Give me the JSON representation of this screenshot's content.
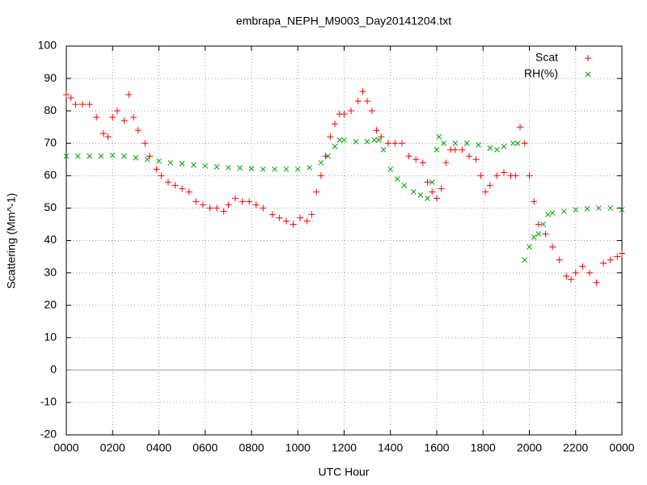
{
  "chart_data": {
    "type": "scatter",
    "title": "embrapa_NEPH_M9003_Day20141204.txt",
    "xlabel": "UTC Hour",
    "ylabel": "Scattering (Mm^-1)",
    "xlim": [
      0,
      24
    ],
    "xticks": [
      {
        "value": 0,
        "label": "0000"
      },
      {
        "value": 2,
        "label": "0200"
      },
      {
        "value": 4,
        "label": "0400"
      },
      {
        "value": 6,
        "label": "0600"
      },
      {
        "value": 8,
        "label": "0800"
      },
      {
        "value": 10,
        "label": "1000"
      },
      {
        "value": 12,
        "label": "1200"
      },
      {
        "value": 14,
        "label": "1400"
      },
      {
        "value": 16,
        "label": "1600"
      },
      {
        "value": 18,
        "label": "1800"
      },
      {
        "value": 20,
        "label": "2000"
      },
      {
        "value": 22,
        "label": "2200"
      },
      {
        "value": 24,
        "label": "0000"
      }
    ],
    "ylim": [
      -20,
      100
    ],
    "yticks": [
      -20,
      -10,
      0,
      10,
      20,
      30,
      40,
      50,
      60,
      70,
      80,
      90,
      100
    ],
    "grid": true,
    "zero_line": true,
    "legend": "top-right",
    "series": [
      {
        "name": "Scat",
        "color": "#ff0000",
        "marker": "plus",
        "x": [
          0.0,
          0.2,
          0.4,
          0.7,
          1.0,
          1.3,
          1.6,
          1.8,
          2.0,
          2.2,
          2.5,
          2.7,
          2.9,
          3.1,
          3.4,
          3.6,
          3.9,
          4.1,
          4.4,
          4.7,
          5.0,
          5.3,
          5.6,
          5.9,
          6.2,
          6.5,
          6.8,
          7.0,
          7.3,
          7.6,
          7.9,
          8.2,
          8.5,
          8.9,
          9.2,
          9.5,
          9.8,
          10.1,
          10.4,
          10.6,
          10.8,
          11.0,
          11.2,
          11.4,
          11.6,
          11.8,
          12.0,
          12.3,
          12.6,
          12.8,
          13.0,
          13.2,
          13.4,
          13.6,
          13.9,
          14.2,
          14.5,
          14.8,
          15.1,
          15.4,
          15.6,
          15.8,
          16.0,
          16.2,
          16.4,
          16.6,
          16.8,
          17.1,
          17.4,
          17.7,
          17.9,
          18.1,
          18.3,
          18.6,
          18.9,
          19.2,
          19.4,
          19.6,
          19.8,
          20.0,
          20.2,
          20.4,
          20.7,
          21.0,
          21.3,
          21.6,
          21.8,
          22.0,
          22.3,
          22.6,
          22.9,
          23.2,
          23.5,
          23.8,
          24.0
        ],
        "values": [
          85,
          84,
          82,
          82,
          82,
          78,
          73,
          72,
          78,
          80,
          77,
          85,
          78,
          74,
          70,
          66,
          62,
          60,
          58,
          57,
          56,
          55,
          52,
          51,
          50,
          50,
          49,
          51,
          53,
          52,
          52,
          51,
          50,
          48,
          47,
          46,
          45,
          47,
          46,
          48,
          55,
          60,
          66,
          72,
          76,
          79,
          79,
          80,
          83,
          86,
          83,
          80,
          74,
          72,
          70,
          70,
          70,
          66,
          65,
          64,
          58,
          55,
          53,
          56,
          64,
          68,
          68,
          68,
          66,
          65,
          60,
          55,
          57,
          60,
          61,
          60,
          60,
          75,
          70,
          60,
          52,
          45,
          42,
          38,
          34,
          29,
          28,
          30,
          32,
          30,
          27,
          33,
          34,
          35,
          36
        ]
      },
      {
        "name": "RH(%)",
        "color": "#00a000",
        "marker": "cross",
        "x": [
          0,
          0.5,
          1,
          1.5,
          2,
          2.5,
          3,
          3.5,
          4,
          4.5,
          5,
          5.5,
          6,
          6.5,
          7,
          7.5,
          8,
          8.5,
          9,
          9.5,
          10,
          10.5,
          11,
          11.3,
          11.6,
          11.8,
          12,
          12.5,
          13,
          13.3,
          13.5,
          13.7,
          14,
          14.3,
          14.6,
          15,
          15.3,
          15.6,
          15.8,
          16,
          16.1,
          16.3,
          16.8,
          17.3,
          17.8,
          18.3,
          18.6,
          18.9,
          19.3,
          19.5,
          19.8,
          20,
          20.2,
          20.4,
          20.6,
          20.8,
          21,
          21.5,
          22,
          22.5,
          23,
          23.5,
          24
        ],
        "values": [
          66,
          66,
          66,
          66,
          66.3,
          66,
          65.5,
          65,
          64.5,
          64,
          63.7,
          63.3,
          63,
          62.7,
          62.5,
          62.4,
          62.2,
          62,
          62,
          62,
          62,
          62.5,
          64,
          66,
          69,
          71,
          71,
          70.5,
          70.5,
          71,
          71,
          68,
          62,
          59,
          57,
          55,
          54,
          53,
          58,
          68,
          72,
          70,
          70,
          70,
          69.5,
          68.5,
          68,
          69,
          70,
          70,
          34,
          38,
          41,
          42,
          45,
          48,
          48.5,
          49,
          49.5,
          49.8,
          50,
          50,
          49.5
        ]
      }
    ]
  }
}
